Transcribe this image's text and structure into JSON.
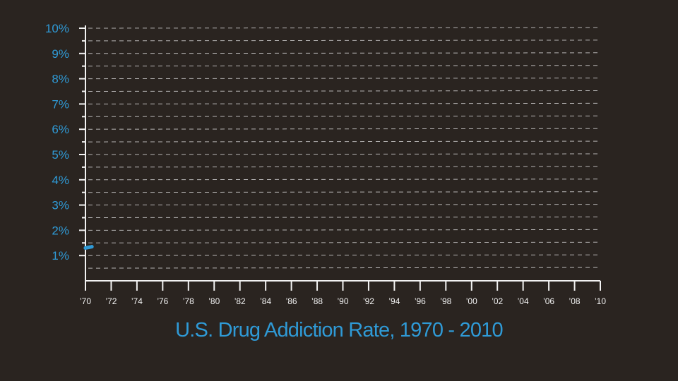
{
  "chart_data": {
    "type": "line",
    "title": "U.S. Drug Addiction Rate, 1970 - 2010",
    "xlabel": "",
    "ylabel": "",
    "x_range": [
      1970,
      2010
    ],
    "ylim": [
      0,
      10
    ],
    "grid": "horizontal dashed",
    "y_tick_labels": [
      "10%",
      "9%",
      "8%",
      "7%",
      "6%",
      "5%",
      "4%",
      "3%",
      "2%",
      "1%"
    ],
    "x_tick_labels": [
      "’70",
      "’72",
      "’74",
      "’76",
      "’78",
      "’80",
      "’82",
      "’84",
      "’86",
      "’88",
      "’90",
      "’92",
      "’94",
      "’96",
      "’98",
      "’00",
      "’02",
      "’04",
      "’06",
      "’08",
      "’10"
    ],
    "series": [
      {
        "color": "#2f9ad6",
        "x": [
          1970,
          1970.5
        ],
        "y": [
          1.3,
          1.35
        ]
      }
    ]
  },
  "colors": {
    "background": "#2a2420",
    "accent": "#2f9ad6",
    "axis": "#f2f2f2"
  }
}
